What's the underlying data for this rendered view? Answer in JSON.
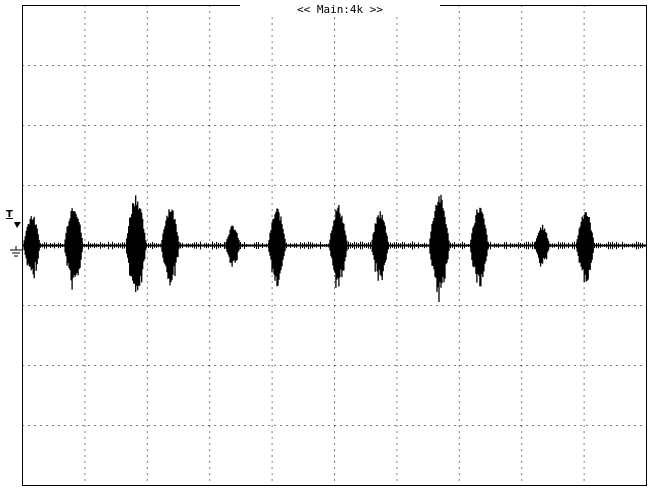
{
  "header": {
    "timebase_label": "<< Main:4k >>"
  },
  "markers": {
    "trigger_label": "T",
    "trigger_icon": "trigger-arrow-icon",
    "ground_icon": "ground-icon"
  },
  "display": {
    "grid": true,
    "horizontal_divisions": 10,
    "vertical_divisions": 8,
    "background_color": "#ffffff",
    "trace_color": "#000000"
  },
  "waveform": {
    "baseline_division": 4.0,
    "bursts": [
      {
        "time_div": 0.15,
        "amplitude_div": 0.55
      },
      {
        "time_div": 0.82,
        "amplitude_div": 0.75
      },
      {
        "time_div": 1.82,
        "amplitude_div": 0.9
      },
      {
        "time_div": 2.37,
        "amplitude_div": 0.7
      },
      {
        "time_div": 3.37,
        "amplitude_div": 0.35
      },
      {
        "time_div": 4.08,
        "amplitude_div": 0.65
      },
      {
        "time_div": 5.06,
        "amplitude_div": 0.7
      },
      {
        "time_div": 5.73,
        "amplitude_div": 0.6
      },
      {
        "time_div": 6.68,
        "amplitude_div": 0.9
      },
      {
        "time_div": 7.32,
        "amplitude_div": 0.7
      },
      {
        "time_div": 8.33,
        "amplitude_div": 0.35
      },
      {
        "time_div": 9.02,
        "amplitude_div": 0.65
      }
    ]
  }
}
